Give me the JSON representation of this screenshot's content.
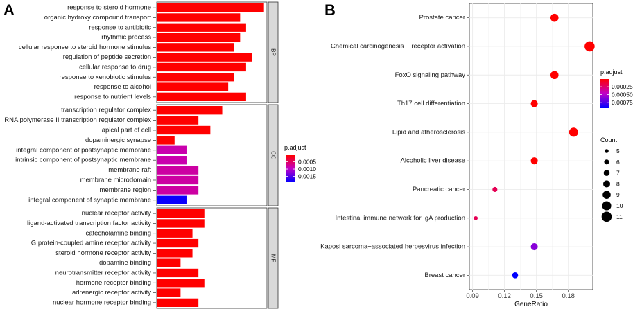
{
  "colors": {
    "high": "#ff0000",
    "mid": "#c000c8",
    "low": "#0000ff",
    "panel_border": "#333333",
    "strip_fill": "#d9d9d9",
    "grid": "#ebebeb"
  },
  "chart_data": [
    {
      "panel": "A",
      "type": "bar",
      "orientation": "horizontal",
      "facets": [
        {
          "name": "BP",
          "categories": [
            "response to steroid hormone",
            "organic hydroxy compound transport",
            "response to antibiotic",
            "rhythmic process",
            "cellular response to steroid hormone stimulus",
            "regulation of peptide secretion",
            "cellular response to drug",
            "response to xenobiotic stimulus",
            "response to alcohol",
            "response to nutrient levels"
          ],
          "values": [
            18,
            14,
            15,
            14,
            13,
            16,
            15,
            13,
            12,
            15
          ],
          "p_adjust": [
            5e-05,
            5e-05,
            5e-05,
            5e-05,
            5e-05,
            5e-05,
            5e-05,
            5e-05,
            5e-05,
            5e-05
          ]
        },
        {
          "name": "CC",
          "categories": [
            "transcription regulator complex",
            "RNA polymerase II transcription regulator complex",
            "apical part of cell",
            "dopaminergic synapse",
            "integral component of postsynaptic membrane",
            "intrinsic component of postsynaptic membrane",
            "membrane raft",
            "membrane microdomain",
            "membrane region",
            "integral component of synaptic membrane"
          ],
          "values": [
            11,
            7,
            9,
            3,
            5,
            5,
            7,
            7,
            7,
            5
          ],
          "p_adjust": [
            5e-05,
            5e-05,
            5e-05,
            5e-05,
            0.00085,
            0.00085,
            0.0008,
            0.0008,
            0.0008,
            0.00185
          ]
        },
        {
          "name": "MF",
          "categories": [
            "nuclear receptor activity",
            "ligand-activated transcription factor activity",
            "catecholamine binding",
            "G protein-coupled amine receptor activity",
            "steroid hormone receptor activity",
            "dopamine binding",
            "neurotransmitter receptor activity",
            "hormone receptor binding",
            "adrenergic receptor activity",
            "nuclear hormone receptor binding"
          ],
          "values": [
            8,
            8,
            6,
            7,
            6,
            4,
            7,
            8,
            4,
            7
          ],
          "p_adjust": [
            5e-05,
            5e-05,
            5e-05,
            5e-05,
            5e-05,
            5e-05,
            5e-05,
            5e-05,
            5e-05,
            5e-05
          ]
        }
      ],
      "xlim": [
        0,
        18.5
      ],
      "legend": {
        "title": "p.adjust",
        "ticks": [
          "0.0005",
          "0.0010",
          "0.0015"
        ],
        "tick_values": [
          0.0005,
          0.001,
          0.0015
        ],
        "range": [
          5e-05,
          0.0019
        ]
      }
    },
    {
      "panel": "B",
      "type": "scatter",
      "categories": [
        "Prostate cancer",
        "Chemical carcinogenesis − receptor activation",
        "FoxO signaling pathway",
        "Th17 cell differentiation",
        "Lipid and atherosclerosis",
        "Alcoholic liver disease",
        "Pancreatic cancer",
        "Intestinal immune network for IgA production",
        "Kaposi sarcoma−associated herpesvirus infection",
        "Breast cancer"
      ],
      "x": [
        0.167,
        0.2,
        0.167,
        0.148,
        0.185,
        0.148,
        0.111,
        0.093,
        0.148,
        0.13
      ],
      "count": [
        9,
        11,
        9,
        8,
        10,
        8,
        6,
        5,
        8,
        7
      ],
      "p_adjust": [
        1e-05,
        1e-05,
        1e-05,
        1e-05,
        1e-05,
        1e-05,
        0.0002,
        0.0002,
        0.0006,
        0.00092
      ],
      "xlabel": "GeneRatio",
      "xticks": [
        0.09,
        0.12,
        0.15,
        0.18
      ],
      "xtick_labels": [
        "0.09",
        "0.12",
        "0.15",
        "0.18"
      ],
      "xlim": [
        0.087,
        0.203
      ],
      "color_legend": {
        "title": "p.adjust",
        "ticks": [
          "0.00025",
          "0.00050",
          "0.00075"
        ],
        "tick_values": [
          0.00025,
          0.0005,
          0.00075
        ],
        "range": [
          1e-05,
          0.00092
        ]
      },
      "size_legend": {
        "title": "Count",
        "values": [
          "5",
          "6",
          "7",
          "8",
          "9",
          "10",
          "11"
        ]
      }
    }
  ],
  "labels": {
    "panel_a": "A",
    "panel_b": "B"
  }
}
